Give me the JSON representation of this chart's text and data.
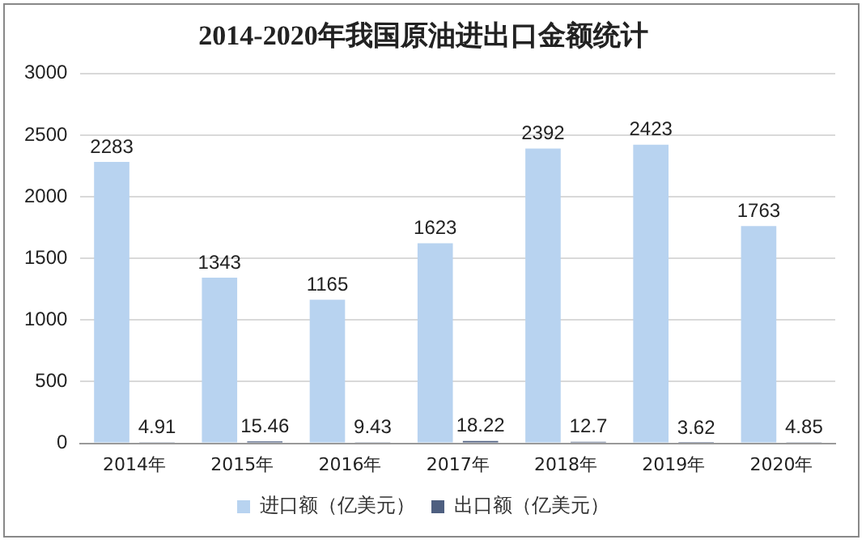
{
  "chart_data": {
    "type": "bar",
    "title": "2014-2020年我国原油进出口金额统计",
    "categories": [
      "2014年",
      "2015年",
      "2016年",
      "2017年",
      "2018年",
      "2019年",
      "2020年"
    ],
    "series": [
      {
        "name": "进口额（亿美元）",
        "color": "#b8d3f0",
        "values": [
          2283,
          1343,
          1165,
          1623,
          2392,
          2423,
          1763
        ]
      },
      {
        "name": "出口额（亿美元）",
        "color": "#4e5f80",
        "values": [
          4.91,
          15.46,
          9.43,
          18.22,
          12.7,
          3.62,
          4.85
        ]
      }
    ],
    "ylim": [
      0,
      3000
    ],
    "yticks": [
      0,
      500,
      1000,
      1500,
      2000,
      2500,
      3000
    ],
    "grid": "y",
    "legend": "bottom",
    "data_labels": true
  }
}
